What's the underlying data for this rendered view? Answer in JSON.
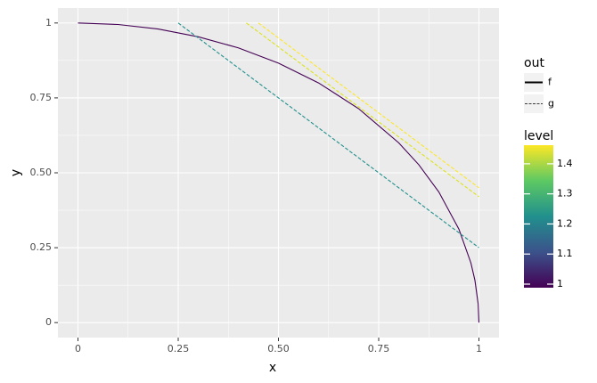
{
  "chart_data": {
    "type": "line",
    "x_label": "x",
    "y_label": "y",
    "xlim": [
      -0.05,
      1.05
    ],
    "ylim": [
      -0.05,
      1.05
    ],
    "xticks": [
      0,
      0.25,
      {
        "value": 0.5,
        "label": "0.50"
      },
      0.75,
      1
    ],
    "yticks": [
      0,
      0.25,
      {
        "value": 0.5,
        "label": "0.50"
      },
      0.75,
      1
    ],
    "minor_xticks": [
      0.125,
      0.375,
      0.625,
      0.875
    ],
    "minor_yticks": [
      0.125,
      0.375,
      0.625,
      0.875
    ],
    "grid": true,
    "series": [
      {
        "out": "f",
        "level": 1,
        "color": "#440154",
        "x": [
          0,
          0.1,
          0.2,
          0.3,
          0.4,
          0.5,
          0.6,
          0.7,
          0.8,
          0.85,
          0.9,
          0.95,
          0.98,
          0.99,
          0.998,
          1
        ],
        "values": [
          1,
          0.995,
          0.98,
          0.954,
          0.917,
          0.866,
          0.8,
          0.714,
          0.6,
          0.527,
          0.436,
          0.312,
          0.199,
          0.141,
          0.063,
          0
        ]
      },
      {
        "out": "g",
        "level": 1.25,
        "color": "#21908d",
        "x": [
          0.25,
          1
        ],
        "values": [
          1,
          0.25
        ]
      },
      {
        "out": "g",
        "level": 1.42,
        "color": "#dde318",
        "x": [
          0.42,
          1
        ],
        "values": [
          1,
          0.42
        ]
      },
      {
        "out": "g",
        "level": 1.45,
        "color": "#fde725",
        "x": [
          0.45,
          1
        ],
        "values": [
          1,
          0.45
        ]
      }
    ],
    "linetype_legend": {
      "title": "out",
      "entries": [
        "f",
        "g"
      ]
    },
    "colorbar": {
      "title": "level",
      "lim": [
        1,
        1.45
      ],
      "ticks": [
        1,
        1.1,
        1.2,
        1.3,
        1.4
      ],
      "colors": [
        "#440154",
        "#3b528b",
        "#21908d",
        "#5dc963",
        "#fde725"
      ]
    }
  }
}
